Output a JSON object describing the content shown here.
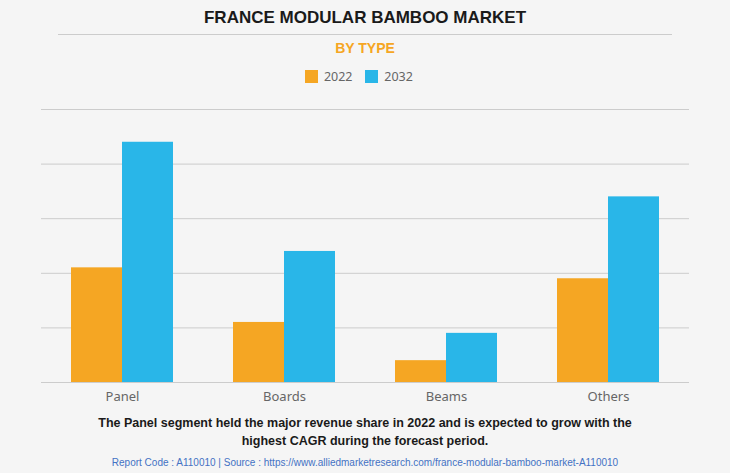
{
  "chart_data": {
    "type": "bar",
    "title": "FRANCE MODULAR BAMBOO MARKET",
    "subtitle": "BY TYPE",
    "categories": [
      "Panel",
      "Boards",
      "Beams",
      "Others"
    ],
    "series": [
      {
        "name": "2022",
        "color": "#F5A623",
        "values": [
          42,
          22,
          8,
          38
        ]
      },
      {
        "name": "2032",
        "color": "#29B6E8",
        "values": [
          88,
          48,
          18,
          68
        ]
      }
    ],
    "ylim": [
      0,
      100
    ],
    "yticks": [
      0,
      20,
      40,
      60,
      80,
      100
    ],
    "grid": true,
    "legend": "top",
    "tick_labels": "x",
    "annotations": [
      "The Panel segment held the major revenue share in 2022 and is expected to grow with the\nhighest CAGR during the forecast period.",
      "Report Code : A110010  |  Source : https://www.alliedmarketresearch.com/france-modular-bamboo-market-A110010"
    ]
  }
}
